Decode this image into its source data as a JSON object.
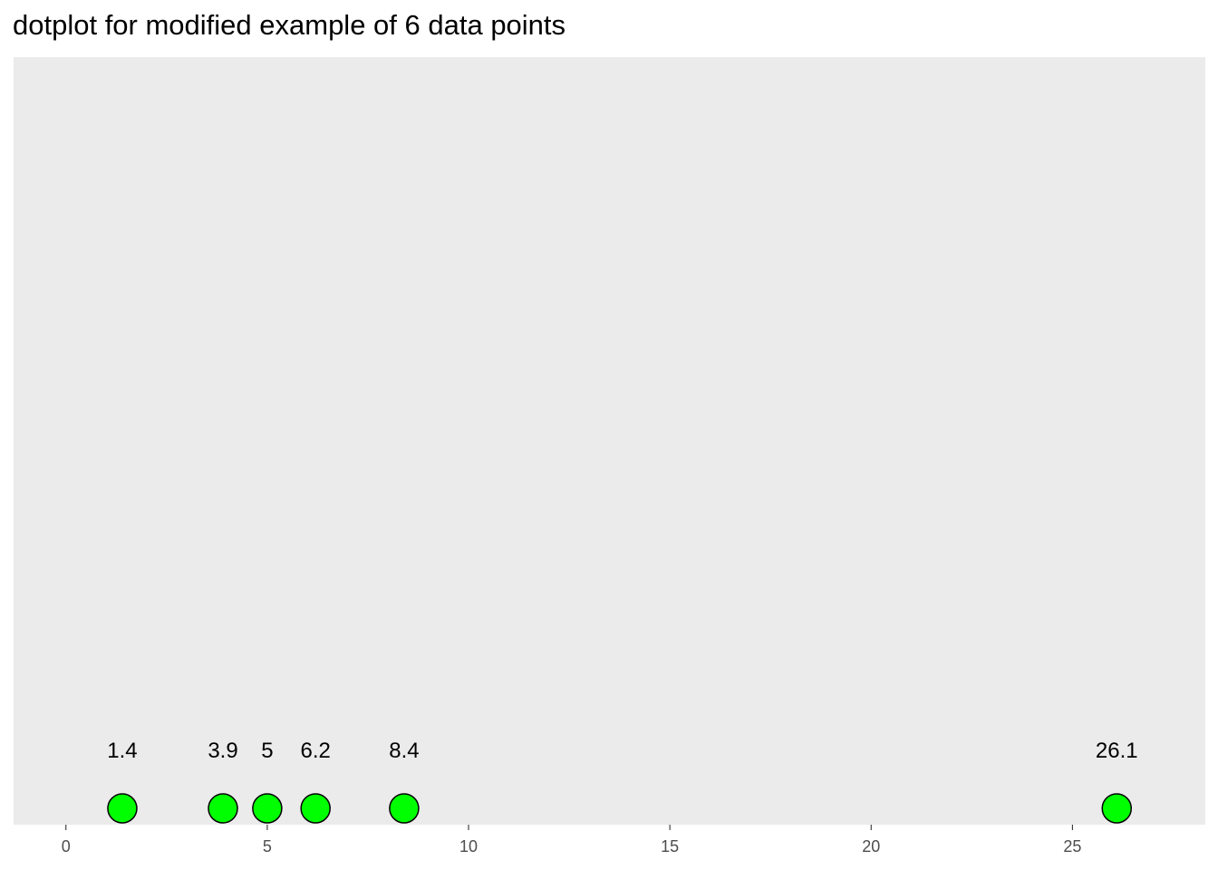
{
  "chart_data": {
    "type": "scatter",
    "subtype": "dotplot",
    "title": "dotplot for modified example of 6 data points",
    "xlabel": "",
    "ylabel": "",
    "x": [
      1.4,
      3.9,
      5,
      6.2,
      8.4,
      26.1
    ],
    "data_labels": [
      "1.4",
      "3.9",
      "5",
      "6.2",
      "8.4",
      "26.1"
    ],
    "xlim": [
      -1.3,
      28.3
    ],
    "x_ticks": [
      0,
      5,
      10,
      15,
      20,
      25
    ],
    "x_tick_labels": [
      "0",
      "5",
      "10",
      "15",
      "20",
      "25"
    ],
    "y_axis_shown": false,
    "grid": false,
    "legend": "none",
    "colors": {
      "panel_background": "#EBEBEB",
      "point_fill": "#00FF00",
      "point_stroke": "#000000",
      "tick_mark": "#333333",
      "tick_label": "#4D4D4D",
      "label_text": "#000000"
    }
  }
}
